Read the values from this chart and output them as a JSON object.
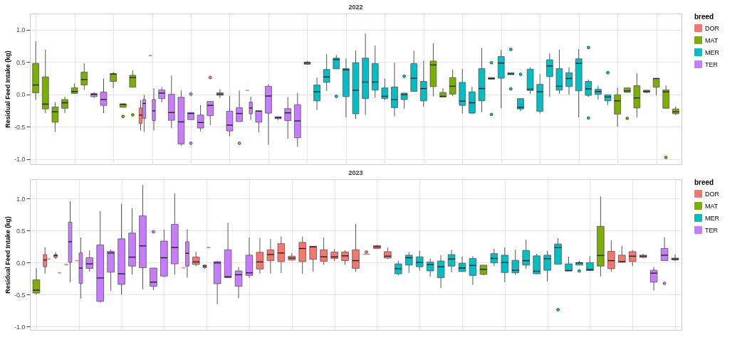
{
  "chart_data": [
    {
      "type": "box",
      "title": "2022",
      "ylabel": "Residual Feed Intake (kg)",
      "legend_title": "breed",
      "legend": "right",
      "grid": true,
      "tick_labels": "y",
      "categories": [
        null,
        null,
        null,
        null,
        null,
        null,
        null,
        null,
        null,
        null,
        null,
        null,
        null,
        null,
        null,
        null,
        null,
        null,
        null,
        null,
        null,
        null,
        null,
        null,
        null,
        null,
        null,
        null,
        null,
        null,
        null,
        null,
        null,
        null,
        null,
        null,
        null,
        null,
        null,
        null,
        null,
        null,
        null,
        null,
        null,
        null,
        null,
        null,
        null,
        null,
        null,
        null,
        null,
        null,
        null,
        null,
        null,
        null,
        null,
        null,
        null,
        null,
        null,
        null,
        null,
        null,
        null
      ],
      "ylim": [
        -1.08,
        1.25
      ],
      "yticks": [
        {
          "value": -1,
          "label": "-1.0"
        },
        {
          "value": -0.5,
          "label": "-0.5"
        },
        {
          "value": 0,
          "label": "0.0"
        },
        {
          "value": 0.5,
          "label": "0.5"
        },
        {
          "value": 1,
          "label": "1.0"
        }
      ],
      "series": [
        {
          "name": "DOR",
          "color": "#f8766d",
          "boxes": [
            null,
            null,
            null,
            null,
            null,
            null,
            null,
            null,
            null,
            null,
            null,
            {
              "low": -0.56,
              "q1": -0.45,
              "median": -0.32,
              "q3": -0.21,
              "high": -0.09
            },
            {
              "low": 0.6,
              "q1": 0.6,
              "median": 0.6,
              "q3": 0.6,
              "high": 0.6
            },
            null,
            null,
            null,
            null,
            null,
            null,
            null,
            null,
            null,
            {
              "low": 0.06,
              "q1": 0.06,
              "median": 0.06,
              "q3": 0.06,
              "high": 0.06
            },
            null,
            null,
            null,
            null,
            null,
            {
              "low": 0.455,
              "q1": 0.465,
              "median": 0.485,
              "q3": 0.5,
              "high": 0.515
            },
            null,
            null,
            null,
            null,
            null,
            null,
            null,
            null,
            null,
            null,
            null,
            null,
            null,
            null,
            null,
            null,
            null,
            null,
            null,
            null,
            null,
            null,
            null,
            null,
            null,
            null,
            null,
            null,
            null,
            null,
            null,
            null,
            null,
            null,
            null,
            null,
            null,
            null
          ]
        },
        {
          "name": "MAT",
          "color": "#7cae00",
          "boxes": [
            {
              "low": -0.085,
              "q1": 0.025,
              "median": 0.145,
              "q3": 0.48,
              "high": 0.82
            },
            {
              "low": -0.29,
              "q1": -0.225,
              "median": -0.15,
              "q3": 0.27,
              "high": 0.69
            },
            {
              "low": -0.58,
              "q1": -0.43,
              "median": -0.27,
              "q3": -0.195,
              "high": -0.12
            },
            {
              "low": -0.29,
              "q1": -0.215,
              "median": -0.13,
              "q3": -0.08,
              "high": -0.035
            },
            {
              "low": 0.01,
              "q1": 0.015,
              "median": 0.045,
              "q3": 0.1,
              "high": 0.17
            },
            {
              "low": 0.07,
              "q1": 0.145,
              "median": 0.23,
              "q3": 0.345,
              "high": 0.48
            },
            null,
            null,
            {
              "low": 0.095,
              "q1": 0.2,
              "median": 0.315,
              "q3": 0.32,
              "high": 0.345
            },
            {
              "low": -0.2,
              "q1": -0.2,
              "median": -0.155,
              "q3": -0.145,
              "high": -0.14,
              "outliers": [
                -0.34
              ]
            },
            {
              "low": 0.11,
              "q1": 0.11,
              "median": 0.26,
              "q3": 0.295,
              "high": 0.37,
              "outliers": [
                -0.315
              ]
            },
            null,
            null,
            null,
            null,
            null,
            null,
            null,
            null,
            null,
            null,
            null,
            null,
            null,
            null,
            null,
            null,
            null,
            null,
            null,
            null,
            null,
            null,
            null,
            null,
            null,
            null,
            null,
            null,
            null,
            null,
            {
              "low": -0.03,
              "q1": 0.12,
              "median": 0.455,
              "q3": 0.515,
              "high": 0.79
            },
            {
              "low": -0.04,
              "q1": -0.04,
              "median": -0.03,
              "q3": 0.03,
              "high": 0.095
            },
            {
              "low": -0.03,
              "q1": 0.005,
              "median": 0.125,
              "q3": 0.26,
              "high": 0.38
            },
            null,
            null,
            null,
            null,
            null,
            null,
            null,
            null,
            null,
            null,
            null,
            null,
            null,
            null,
            null,
            null,
            {
              "low": -0.5,
              "q1": -0.305,
              "median": -0.1,
              "q3": -0.005,
              "high": 0.105
            },
            {
              "low": 0.03,
              "q1": 0.03,
              "median": 0.055,
              "q3": 0.1,
              "high": 0.1,
              "outliers": [
                -0.37
              ]
            },
            {
              "low": -0.355,
              "q1": -0.21,
              "median": -0.055,
              "q3": 0.135,
              "high": 0.325
            },
            {
              "low": 0.02,
              "q1": 0.03,
              "median": 0.045,
              "q3": 0.065,
              "high": 0.07
            },
            {
              "low": -0.015,
              "q1": 0.11,
              "median": 0.245,
              "q3": 0.245,
              "high": 0.245
            },
            {
              "low": -0.215,
              "q1": -0.215,
              "median": 0.04,
              "q3": 0.07,
              "high": 0.14,
              "outliers": [
                -0.975
              ]
            },
            {
              "low": -0.32,
              "q1": -0.3,
              "median": -0.27,
              "q3": -0.225,
              "high": -0.185
            }
          ]
        },
        {
          "name": "MER",
          "color": "#00bfc4",
          "boxes": [
            null,
            null,
            null,
            null,
            null,
            null,
            null,
            null,
            null,
            null,
            null,
            null,
            null,
            null,
            null,
            null,
            null,
            null,
            null,
            null,
            null,
            null,
            null,
            null,
            null,
            null,
            null,
            null,
            null,
            {
              "low": -0.24,
              "q1": -0.1,
              "median": 0.04,
              "q3": 0.145,
              "high": 0.26
            },
            {
              "low": 0.05,
              "q1": 0.185,
              "median": 0.27,
              "q3": 0.385,
              "high": 0.625
            },
            {
              "low": 0.395,
              "q1": 0.395,
              "median": 0.54,
              "q3": 0.56,
              "high": 0.61,
              "outliers": [
                -0.03
              ]
            },
            {
              "low": -0.355,
              "q1": -0.035,
              "median": 0.38,
              "q3": 0.4,
              "high": 0.555
            },
            {
              "low": -0.38,
              "q1": -0.3,
              "median": 0.065,
              "q3": 0.49,
              "high": 0.675
            },
            {
              "low": -0.315,
              "q1": -0.065,
              "median": 0.19,
              "q3": 0.56,
              "high": 0.94
            },
            {
              "low": -0.05,
              "q1": 0.065,
              "median": 0.19,
              "q3": 0.475,
              "high": 0.755
            },
            {
              "low": -0.09,
              "q1": -0.065,
              "median": -0.03,
              "q3": 0.1,
              "high": 0.245
            },
            {
              "low": -0.34,
              "q1": -0.205,
              "median": -0.08,
              "q3": 0.115,
              "high": 0.49
            },
            {
              "low": -0.22,
              "q1": -0.08,
              "median": -0.005,
              "q3": 0.02,
              "high": 0.02,
              "outliers": [
                0.28
              ]
            },
            {
              "low": 0.045,
              "q1": 0.045,
              "median": 0.25,
              "q3": 0.475,
              "high": 0.675
            },
            {
              "low": -0.19,
              "q1": -0.1,
              "median": 0.09,
              "q3": 0.2,
              "high": 0.52
            },
            null,
            null,
            null,
            {
              "low": -0.295,
              "q1": -0.17,
              "median": -0.105,
              "q3": 0.185,
              "high": 0.395
            },
            {
              "low": -0.305,
              "q1": -0.29,
              "median": -0.13,
              "q3": 0.04,
              "high": 0.115
            },
            {
              "low": -0.275,
              "q1": -0.1,
              "median": 0.09,
              "q3": 0.4,
              "high": 0.715
            },
            {
              "low": 0.235,
              "q1": 0.235,
              "median": 0.245,
              "q3": 0.26,
              "high": 0.26,
              "outliers": [
                0.49,
                -0.31
              ]
            },
            {
              "low": -0.215,
              "q1": 0.25,
              "median": 0.485,
              "q3": 0.585,
              "high": 0.69
            },
            {
              "low": 0.305,
              "q1": 0.305,
              "median": 0.315,
              "q3": 0.335,
              "high": 0.335,
              "outliers": [
                0.695,
                0.085
              ]
            },
            {
              "low": -0.26,
              "q1": -0.225,
              "median": -0.2,
              "q3": -0.065,
              "high": -0.065,
              "outliers": [
                0.31
              ]
            },
            {
              "low": 0.005,
              "q1": 0.06,
              "median": 0.08,
              "q3": 0.39,
              "high": 0.42
            },
            {
              "low": -0.295,
              "q1": -0.26,
              "median": 0.04,
              "q3": 0.155,
              "high": 0.315
            },
            {
              "low": -0.04,
              "q1": 0.275,
              "median": 0.44,
              "q3": 0.535,
              "high": 0.635
            },
            {
              "low": 0.01,
              "q1": 0.065,
              "median": 0.125,
              "q3": 0.4,
              "high": 0.69
            },
            {
              "low": -0.005,
              "q1": 0.12,
              "median": 0.245,
              "q3": 0.335,
              "high": 0.42
            },
            {
              "low": -0.355,
              "q1": 0.055,
              "median": 0.48,
              "q3": 0.55,
              "high": 0.7
            },
            {
              "low": -0.04,
              "q1": -0.015,
              "median": 0.085,
              "q3": 0.2,
              "high": 0.23,
              "outliers": [
                0.725,
                -0.365
              ]
            },
            {
              "low": -0.08,
              "q1": 0.0,
              "median": 0.045,
              "q3": 0.08,
              "high": 0.135
            },
            {
              "low": -0.165,
              "q1": -0.1,
              "median": -0.04,
              "q3": -0.005,
              "high": -0.005,
              "outliers": [
                0.335
              ]
            },
            null,
            null,
            null,
            null,
            null,
            null,
            null
          ]
        },
        {
          "name": "TER",
          "color": "#c77cff",
          "boxes": [
            null,
            null,
            null,
            null,
            null,
            null,
            {
              "low": -0.055,
              "q1": -0.035,
              "median": 0.0,
              "q3": 0.015,
              "high": 0.035
            },
            {
              "low": -0.29,
              "q1": -0.17,
              "median": -0.08,
              "q3": 0.035,
              "high": 0.24
            },
            null,
            null,
            null,
            {
              "low": -0.58,
              "q1": -0.37,
              "median": -0.14,
              "q3": -0.08,
              "high": -0.005
            },
            {
              "low": -0.56,
              "q1": -0.405,
              "median": -0.255,
              "q3": -0.08,
              "high": 0.095
            },
            {
              "low": -0.125,
              "q1": -0.065,
              "median": 0.02,
              "q3": 0.07,
              "high": 0.115
            },
            {
              "low": -0.525,
              "q1": -0.4,
              "median": -0.28,
              "q3": 0.0,
              "high": 0.29
            },
            {
              "low": -0.79,
              "q1": -0.765,
              "median": -0.425,
              "q3": -0.045,
              "high": 0.06
            },
            {
              "low": -0.39,
              "q1": -0.39,
              "median": -0.295,
              "q3": -0.28,
              "high": -0.28,
              "outliers": [
                0.005,
                -0.755
              ]
            },
            {
              "low": -0.57,
              "q1": -0.52,
              "median": -0.435,
              "q3": -0.32,
              "high": -0.165
            },
            {
              "low": -0.475,
              "q1": -0.33,
              "median": -0.17,
              "q3": -0.11,
              "high": -0.11,
              "outliers": [
                0.26
              ]
            },
            {
              "low": -0.055,
              "q1": -0.015,
              "median": 0.005,
              "q3": 0.025,
              "high": 0.08
            },
            {
              "low": -0.65,
              "q1": -0.565,
              "median": -0.475,
              "q3": -0.26,
              "high": -0.03
            },
            {
              "low": -0.42,
              "q1": -0.42,
              "median": -0.295,
              "q3": -0.205,
              "high": 0.06,
              "outliers": [
                -0.755
              ]
            },
            {
              "low": -0.395,
              "q1": -0.3,
              "median": -0.21,
              "q3": -0.12,
              "high": -0.035
            },
            {
              "low": -0.585,
              "q1": -0.43,
              "median": -0.258,
              "q3": -0.255,
              "high": -0.255
            },
            {
              "low": -0.78,
              "q1": -0.29,
              "median": -0.025,
              "q3": 0.125,
              "high": 0.155
            },
            {
              "low": -0.395,
              "q1": -0.375,
              "median": -0.36,
              "q3": -0.345,
              "high": -0.345
            },
            {
              "low": -0.685,
              "q1": -0.405,
              "median": -0.285,
              "q3": -0.22,
              "high": -0.04
            },
            {
              "low": -0.81,
              "q1": -0.67,
              "median": -0.41,
              "q3": -0.16,
              "high": 0.025
            },
            null,
            null,
            null,
            null,
            null,
            null,
            null,
            null,
            null,
            null,
            null,
            null,
            null,
            null,
            null,
            null,
            null,
            null,
            null,
            null,
            null,
            null,
            null,
            null,
            null,
            null,
            null,
            null,
            null,
            null,
            null,
            null,
            null,
            null,
            null,
            null,
            null,
            null,
            null
          ]
        }
      ]
    },
    {
      "type": "box",
      "title": "2023",
      "ylabel": "Residual Feed Intake (kg)",
      "legend_title": "breed",
      "legend": "right",
      "grid": true,
      "tick_labels": "y",
      "categories": [
        null,
        null,
        null,
        null,
        null,
        null,
        null,
        null,
        null,
        null,
        null,
        null,
        null,
        null,
        null,
        null,
        null,
        null,
        null,
        null,
        null,
        null,
        null,
        null,
        null,
        null,
        null,
        null,
        null,
        null,
        null,
        null,
        null,
        null,
        null,
        null,
        null,
        null,
        null,
        null,
        null,
        null,
        null,
        null,
        null,
        null,
        null,
        null,
        null,
        null,
        null,
        null,
        null,
        null,
        null,
        null,
        null,
        null,
        null,
        null,
        null
      ],
      "ylim": [
        -1.05,
        1.3
      ],
      "yticks": [
        {
          "value": -1,
          "label": "-1.0"
        },
        {
          "value": -0.5,
          "label": "-0.5"
        },
        {
          "value": 0,
          "label": "0.0"
        },
        {
          "value": 0.5,
          "label": "0.5"
        },
        {
          "value": 1,
          "label": "1.0"
        }
      ],
      "series": [
        {
          "name": "DOR",
          "color": "#f8766d",
          "boxes": [
            null,
            {
              "low": -0.17,
              "q1": -0.065,
              "median": 0.04,
              "q3": 0.125,
              "high": 0.24
            },
            {
              "low": 0.055,
              "q1": 0.08,
              "median": 0.11,
              "q3": 0.125,
              "high": 0.165
            },
            {
              "low": -0.03,
              "q1": -0.03,
              "median": -0.03,
              "q3": -0.03,
              "high": -0.03
            },
            {
              "low": 0.03,
              "q1": 0.03,
              "median": 0.03,
              "q3": 0.03,
              "high": 0.03
            },
            null,
            null,
            null,
            null,
            null,
            null,
            null,
            null,
            null,
            {
              "low": -0.08,
              "q1": -0.08,
              "median": -0.08,
              "q3": -0.08,
              "high": -0.08
            },
            {
              "low": -0.055,
              "q1": -0.03,
              "median": 0.01,
              "q3": 0.085,
              "high": 0.17
            },
            {
              "low": -0.095,
              "q1": -0.08,
              "median": -0.055,
              "q3": -0.04,
              "high": -0.03
            },
            null,
            null,
            null,
            null,
            {
              "low": -0.17,
              "q1": -0.1,
              "median": 0.01,
              "q3": 0.16,
              "high": 0.38
            },
            {
              "low": -0.17,
              "q1": 0.03,
              "median": 0.125,
              "q3": 0.2,
              "high": 0.37
            },
            {
              "low": -0.165,
              "q1": 0.015,
              "median": 0.15,
              "q3": 0.295,
              "high": 0.405
            },
            {
              "low": 0.03,
              "q1": 0.04,
              "median": 0.07,
              "q3": 0.1,
              "high": 0.145
            },
            {
              "low": -0.175,
              "q1": 0.015,
              "median": 0.22,
              "q3": 0.315,
              "high": 0.405
            },
            {
              "low": -0.14,
              "q1": 0.05,
              "median": 0.245,
              "q3": 0.255,
              "high": 0.255
            },
            {
              "low": -0.035,
              "q1": 0.02,
              "median": 0.09,
              "q3": 0.2,
              "high": 0.39
            },
            {
              "low": 0.025,
              "q1": 0.065,
              "median": 0.09,
              "q3": 0.165,
              "high": 0.21
            },
            {
              "low": -0.035,
              "q1": 0.03,
              "median": 0.105,
              "q3": 0.165,
              "high": 0.19
            },
            {
              "low": -0.14,
              "q1": -0.09,
              "median": 0.03,
              "q3": 0.2,
              "high": 0.6
            },
            {
              "low": 0.13,
              "q1": 0.13,
              "median": 0.13,
              "q3": 0.13,
              "high": 0.13,
              "outliers": [
                0.165
              ]
            },
            {
              "low": 0.22,
              "q1": 0.22,
              "median": 0.245,
              "q3": 0.265,
              "high": 0.275
            },
            {
              "low": 0.055,
              "q1": 0.07,
              "median": 0.1,
              "q3": 0.17,
              "high": 0.235
            },
            null,
            null,
            null,
            null,
            null,
            null,
            null,
            null,
            null,
            null,
            null,
            null,
            null,
            null,
            null,
            null,
            null,
            null,
            null,
            null,
            {
              "low": -0.14,
              "q1": -0.095,
              "median": 0.03,
              "q3": 0.175,
              "high": 0.345
            },
            {
              "low": 0.005,
              "q1": 0.005,
              "median": 0.015,
              "q3": 0.115,
              "high": 0.26
            },
            {
              "low": -0.055,
              "q1": 0.015,
              "median": 0.1,
              "q3": 0.17,
              "high": 0.195
            },
            {
              "low": 0.07,
              "q1": 0.08,
              "median": 0.1,
              "q3": 0.115,
              "high": 0.14
            },
            null,
            null,
            {
              "low": 0.02,
              "q1": 0.04,
              "median": 0.055,
              "q3": 0.07,
              "high": 0.13
            }
          ]
        },
        {
          "name": "MAT",
          "color": "#7cae00",
          "boxes": [
            {
              "low": -0.5,
              "q1": -0.475,
              "median": -0.43,
              "q3": -0.27,
              "high": -0.085
            },
            null,
            null,
            null,
            null,
            null,
            null,
            null,
            null,
            null,
            null,
            null,
            null,
            null,
            null,
            null,
            null,
            null,
            null,
            null,
            null,
            null,
            null,
            null,
            null,
            null,
            null,
            null,
            null,
            null,
            null,
            null,
            null,
            null,
            null,
            null,
            null,
            null,
            null,
            null,
            null,
            null,
            {
              "low": -0.2,
              "q1": -0.185,
              "median": -0.105,
              "q3": -0.04,
              "high": -0.04
            },
            null,
            null,
            null,
            null,
            null,
            null,
            null,
            null,
            null,
            null,
            {
              "low": -0.215,
              "q1": -0.055,
              "median": 0.11,
              "q3": 0.565,
              "high": 1.03
            },
            null,
            null,
            null,
            null,
            null,
            null,
            null
          ]
        },
        {
          "name": "MER",
          "color": "#00bfc4",
          "boxes": [
            null,
            null,
            null,
            null,
            null,
            null,
            null,
            null,
            null,
            null,
            null,
            null,
            null,
            null,
            null,
            null,
            null,
            null,
            null,
            null,
            null,
            null,
            null,
            null,
            null,
            null,
            null,
            null,
            null,
            null,
            null,
            null,
            null,
            null,
            {
              "low": -0.2,
              "q1": -0.175,
              "median": -0.095,
              "q3": -0.02,
              "high": 0.03
            },
            {
              "low": -0.16,
              "q1": -0.04,
              "median": 0.075,
              "q3": 0.115,
              "high": 0.165
            },
            {
              "low": -0.125,
              "q1": -0.065,
              "median": 0.0,
              "q3": 0.09,
              "high": 0.185
            },
            {
              "low": -0.22,
              "q1": -0.13,
              "median": -0.03,
              "q3": 0.01,
              "high": 0.065
            },
            {
              "low": -0.395,
              "q1": -0.235,
              "median": -0.065,
              "q3": 0.025,
              "high": 0.115
            },
            {
              "low": -0.15,
              "q1": -0.055,
              "median": 0.055,
              "q3": 0.125,
              "high": 0.2
            },
            {
              "low": -0.14,
              "q1": -0.14,
              "median": -0.085,
              "q3": -0.01,
              "high": 0.095
            },
            {
              "low": -0.35,
              "q1": -0.2,
              "median": -0.045,
              "q3": 0.065,
              "high": 0.1
            },
            null,
            {
              "low": -0.055,
              "q1": -0.005,
              "median": 0.065,
              "q3": 0.14,
              "high": 0.215
            },
            {
              "low": -0.305,
              "q1": -0.155,
              "median": 0.0,
              "q3": 0.115,
              "high": 0.235
            },
            {
              "low": -0.19,
              "q1": -0.16,
              "median": -0.12,
              "q3": 0.035,
              "high": 0.2
            },
            {
              "low": -0.1,
              "q1": -0.04,
              "median": 0.03,
              "q3": 0.19,
              "high": 0.355
            },
            {
              "low": -0.175,
              "q1": -0.175,
              "median": -0.135,
              "q3": 0.105,
              "high": 0.135
            },
            {
              "low": -0.295,
              "q1": -0.12,
              "median": 0.06,
              "q3": 0.115,
              "high": 0.18
            },
            {
              "low": -0.025,
              "q1": -0.025,
              "median": 0.235,
              "q3": 0.29,
              "high": 0.38,
              "outliers": [
                -0.735
              ]
            },
            {
              "low": -0.13,
              "q1": -0.13,
              "median": -0.125,
              "q3": -0.02,
              "high": 0.09
            },
            {
              "low": -0.04,
              "q1": -0.04,
              "median": -0.005,
              "q3": 0.0,
              "high": 0.025,
              "outliers": [
                -0.13
              ]
            },
            {
              "low": -0.125,
              "q1": -0.125,
              "median": -0.11,
              "q3": 0.0,
              "high": 0.1
            },
            null,
            null,
            null,
            null,
            null,
            null,
            null,
            null
          ]
        },
        {
          "name": "TER",
          "color": "#c77cff",
          "boxes": [
            null,
            {
              "low": 0.055,
              "q1": 0.055,
              "median": 0.055,
              "q3": 0.055,
              "high": 0.055
            },
            {
              "low": -0.16,
              "q1": -0.16,
              "median": -0.16,
              "q3": -0.16,
              "high": -0.16
            },
            {
              "low": -0.305,
              "q1": 0.005,
              "median": 0.325,
              "q3": 0.63,
              "high": 0.955
            },
            {
              "low": -0.56,
              "q1": -0.325,
              "median": -0.085,
              "q3": 0.15,
              "high": 0.39
            },
            {
              "low": -0.14,
              "q1": -0.09,
              "median": -0.02,
              "q3": 0.075,
              "high": 0.19
            },
            {
              "low": -0.625,
              "q1": -0.605,
              "median": -0.24,
              "q3": 0.275,
              "high": 0.8
            },
            {
              "low": -0.44,
              "q1": -0.15,
              "median": 0.15,
              "q3": 0.175,
              "high": 0.2
            },
            {
              "low": -0.5,
              "q1": -0.34,
              "median": -0.175,
              "q3": 0.37,
              "high": 0.915
            },
            {
              "low": -0.185,
              "q1": -0.055,
              "median": 0.085,
              "q3": 0.46,
              "high": 0.85
            },
            {
              "low": -0.415,
              "q1": -0.08,
              "median": 0.26,
              "q3": 0.73,
              "high": 1.21
            },
            {
              "low": -0.43,
              "q1": -0.37,
              "median": -0.305,
              "q3": -0.085,
              "high": -0.085,
              "outliers": [
                0.48
              ]
            },
            {
              "low": -0.225,
              "q1": -0.21,
              "median": 0.075,
              "q3": 0.335,
              "high": 0.515
            },
            {
              "low": -0.185,
              "q1": -0.02,
              "median": 0.235,
              "q3": 0.595,
              "high": 1.08
            },
            {
              "low": -0.235,
              "q1": -0.055,
              "median": 0.145,
              "q3": 0.325,
              "high": 0.52
            },
            null,
            {
              "low": 0.235,
              "q1": 0.235,
              "median": 0.235,
              "q3": 0.235,
              "high": 0.235
            },
            {
              "low": -0.65,
              "q1": -0.33,
              "median": -0.005,
              "q3": 0.015,
              "high": 0.03
            },
            {
              "low": -0.235,
              "q1": -0.235,
              "median": -0.22,
              "q3": 0.2,
              "high": 0.62
            },
            {
              "low": -0.555,
              "q1": -0.37,
              "median": -0.19,
              "q3": -0.13,
              "high": -0.07
            },
            {
              "low": -0.235,
              "q1": -0.2,
              "median": -0.16,
              "q3": 0.115,
              "high": 0.39
            },
            null,
            null,
            null,
            null,
            null,
            null,
            null,
            null,
            null,
            null,
            null,
            null,
            null,
            null,
            null,
            null,
            null,
            null,
            null,
            null,
            null,
            null,
            null,
            null,
            null,
            null,
            null,
            null,
            null,
            null,
            null,
            null,
            null,
            null,
            null,
            null,
            null,
            {
              "low": -0.435,
              "q1": -0.305,
              "median": -0.165,
              "q3": -0.12,
              "high": -0.07
            },
            {
              "low": 0.03,
              "q1": 0.03,
              "median": 0.115,
              "q3": 0.22,
              "high": 0.395,
              "outliers": [
                -0.325
              ]
            },
            null
          ]
        }
      ]
    }
  ]
}
